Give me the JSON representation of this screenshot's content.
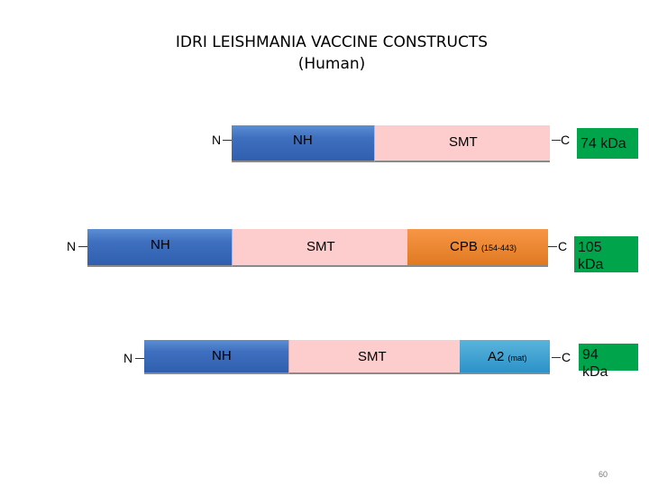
{
  "title": {
    "line1": "IDRI LEISHMANIA VACCINE CONSTRUCTS",
    "line2": "(Human)"
  },
  "constructs": [
    {
      "n_label": "N",
      "c_label": "C",
      "segments": [
        {
          "label": "NH",
          "sub": ""
        },
        {
          "label": "SMT",
          "sub": ""
        }
      ],
      "size_line1": "74 k",
      "size_line2": "Da",
      "size": "74 kDa"
    },
    {
      "n_label": "N",
      "c_label": "C",
      "segments": [
        {
          "label": "NH",
          "sub": ""
        },
        {
          "label": "SMT",
          "sub": ""
        },
        {
          "label": "CPB",
          "sub": "(154-443)"
        }
      ],
      "size_line1": "105",
      "size_line2": "kDa"
    },
    {
      "n_label": "N",
      "c_label": "C",
      "segments": [
        {
          "label": "NH",
          "sub": ""
        },
        {
          "label": "SMT",
          "sub": ""
        },
        {
          "label": "A2",
          "sub": "(mat)"
        }
      ],
      "size_line1": "94",
      "size_line2": "kDa"
    }
  ],
  "page_number": "60",
  "colors": {
    "nh": "#3f6fbf",
    "smt": "#fdcccd",
    "cpb": "#e07a22",
    "a2": "#2c92c8",
    "size_box": "#00a44a"
  }
}
